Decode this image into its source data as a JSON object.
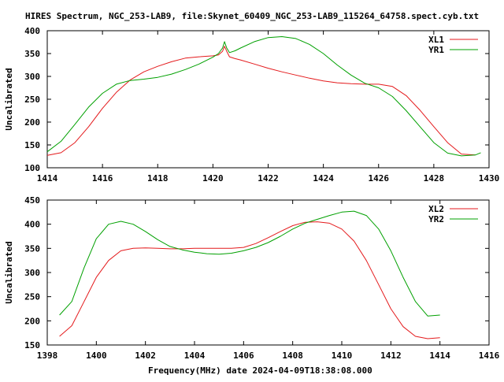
{
  "page": {
    "title": "HIRES Spectrum, NGC_253-LAB9, file:Skynet_60409_NGC_253-LAB9_115264_64758.spect.cyb.txt",
    "xlabel": "Frequency(MHz) date 2024-04-09T18:38:08.000"
  },
  "chart_data": [
    {
      "type": "line",
      "ylabel": "Uncalibrated",
      "xlim": [
        1414,
        1430
      ],
      "ylim": [
        100,
        400
      ],
      "xticks": [
        1414,
        1416,
        1418,
        1420,
        1422,
        1424,
        1426,
        1428,
        1430
      ],
      "yticks": [
        100,
        150,
        200,
        250,
        300,
        350,
        400
      ],
      "legend_position": "top-right",
      "series": [
        {
          "name": "XL1",
          "color": "#e41a1c",
          "x": [
            1414.0,
            1414.5,
            1415.0,
            1415.5,
            1416.0,
            1416.5,
            1417.0,
            1417.5,
            1418.0,
            1418.5,
            1419.0,
            1419.5,
            1420.0,
            1420.2,
            1420.35,
            1420.42,
            1420.5,
            1420.6,
            1420.8,
            1421.0,
            1421.5,
            1422.0,
            1422.5,
            1423.0,
            1423.5,
            1424.0,
            1424.5,
            1425.0,
            1425.5,
            1426.0,
            1426.5,
            1427.0,
            1427.5,
            1428.0,
            1428.5,
            1429.0,
            1429.5
          ],
          "y": [
            127,
            133,
            155,
            190,
            230,
            265,
            292,
            310,
            322,
            332,
            340,
            343,
            345,
            347,
            355,
            366,
            355,
            343,
            339,
            336,
            327,
            318,
            310,
            303,
            296,
            290,
            286,
            284,
            283,
            283,
            278,
            258,
            226,
            190,
            155,
            130,
            128
          ]
        },
        {
          "name": "YR1",
          "color": "#00a000",
          "x": [
            1414.0,
            1414.5,
            1415.0,
            1415.5,
            1416.0,
            1416.5,
            1417.0,
            1417.5,
            1418.0,
            1418.5,
            1419.0,
            1419.5,
            1420.0,
            1420.2,
            1420.35,
            1420.42,
            1420.5,
            1420.6,
            1420.8,
            1421.0,
            1421.5,
            1422.0,
            1422.5,
            1423.0,
            1423.5,
            1424.0,
            1424.5,
            1425.0,
            1425.5,
            1426.0,
            1426.5,
            1427.0,
            1427.5,
            1428.0,
            1428.5,
            1429.0,
            1429.5,
            1429.7
          ],
          "y": [
            135,
            158,
            195,
            233,
            263,
            283,
            291,
            294,
            298,
            305,
            315,
            327,
            342,
            350,
            362,
            376,
            362,
            352,
            356,
            362,
            376,
            385,
            387,
            383,
            370,
            350,
            325,
            303,
            285,
            275,
            256,
            225,
            190,
            155,
            132,
            126,
            128,
            133
          ]
        }
      ]
    },
    {
      "type": "line",
      "ylabel": "Uncalibrated",
      "xlim": [
        1398,
        1416
      ],
      "ylim": [
        150,
        450
      ],
      "xticks": [
        1398,
        1400,
        1402,
        1404,
        1406,
        1408,
        1410,
        1412,
        1414,
        1416
      ],
      "yticks": [
        150,
        200,
        250,
        300,
        350,
        400,
        450
      ],
      "legend_position": "top-right",
      "series": [
        {
          "name": "XL2",
          "color": "#e41a1c",
          "x": [
            1398.5,
            1399.0,
            1399.5,
            1400.0,
            1400.5,
            1401.0,
            1401.5,
            1402.0,
            1402.5,
            1403.0,
            1403.5,
            1404.0,
            1404.5,
            1405.0,
            1405.5,
            1406.0,
            1406.5,
            1407.0,
            1407.5,
            1408.0,
            1408.5,
            1409.0,
            1409.5,
            1410.0,
            1410.5,
            1411.0,
            1411.5,
            1412.0,
            1412.5,
            1413.0,
            1413.5,
            1414.0
          ],
          "y": [
            168,
            190,
            240,
            290,
            325,
            345,
            350,
            351,
            350,
            349,
            349,
            350,
            350,
            350,
            350,
            352,
            360,
            372,
            385,
            397,
            404,
            405,
            402,
            390,
            365,
            325,
            275,
            225,
            188,
            168,
            163,
            165
          ]
        },
        {
          "name": "YR2",
          "color": "#00a000",
          "x": [
            1398.5,
            1399.0,
            1399.5,
            1400.0,
            1400.5,
            1401.0,
            1401.5,
            1402.0,
            1402.5,
            1403.0,
            1403.5,
            1404.0,
            1404.5,
            1405.0,
            1405.5,
            1406.0,
            1406.5,
            1407.0,
            1407.5,
            1408.0,
            1408.5,
            1409.0,
            1409.5,
            1410.0,
            1410.5,
            1411.0,
            1411.5,
            1412.0,
            1412.5,
            1413.0,
            1413.5,
            1414.0
          ],
          "y": [
            212,
            240,
            310,
            370,
            400,
            406,
            400,
            385,
            368,
            354,
            347,
            342,
            339,
            338,
            340,
            345,
            352,
            362,
            375,
            390,
            402,
            410,
            418,
            425,
            427,
            418,
            390,
            345,
            290,
            240,
            210,
            212
          ]
        }
      ]
    }
  ]
}
